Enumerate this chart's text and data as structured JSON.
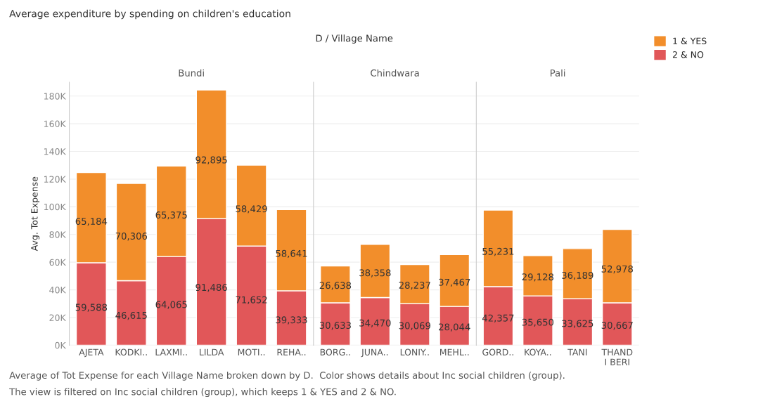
{
  "chart_data": [
    {
      "type": "bar",
      "title": "Bundi",
      "stacked": true,
      "grid": "y",
      "legend": "top right",
      "ylabel": "Avg. Tot Expense",
      "ylim": [
        0,
        190000
      ],
      "yticks": [
        {
          "value": 0,
          "label": "0K"
        },
        {
          "value": 20000,
          "label": "20K"
        },
        {
          "value": 40000,
          "label": "40K"
        },
        {
          "value": 60000,
          "label": "60K"
        },
        {
          "value": 80000,
          "label": "80K"
        },
        {
          "value": 100000,
          "label": "100K"
        },
        {
          "value": 120000,
          "label": "120K"
        },
        {
          "value": 140000,
          "label": "140K"
        },
        {
          "value": 160000,
          "label": "160K"
        },
        {
          "value": 180000,
          "label": "180K"
        }
      ],
      "categories": [
        "AJETA",
        "KODKI..",
        "LAXMI..",
        "LILDA",
        "MOTI..",
        "REHA.."
      ],
      "series": [
        {
          "name": "2 & NO",
          "color": "#e15759",
          "values": [
            59588,
            46615,
            64065,
            91486,
            71652,
            39333
          ],
          "value_labels": [
            "59,588",
            "46,615",
            "64,065",
            "91,486",
            "71,652",
            "39,333"
          ]
        },
        {
          "name": "1 & YES",
          "color": "#f28e2b",
          "values": [
            65184,
            70306,
            65375,
            92895,
            58429,
            58641
          ],
          "value_labels": [
            "65,184",
            "70,306",
            "65,375",
            "92,895",
            "58,429",
            "58,641"
          ]
        }
      ],
      "annotations": [
        "Average expenditure by spending on children's education",
        "D / Village Name",
        "Average of Tot Expense for each Village Name broken down by D.  Color shows details about Inc social children (group).",
        "The view is filtered on Inc social children (group), which keeps 1 & YES and 2 & NO."
      ]
    },
    {
      "type": "bar",
      "title": "Chindwara",
      "stacked": true,
      "grid": "y",
      "tick_labels": "x",
      "ylim": [
        0,
        190000
      ],
      "yticks": [
        0,
        20000,
        40000,
        60000,
        80000,
        100000,
        120000,
        140000,
        160000,
        180000
      ],
      "categories": [
        "BORG..",
        "JUNA..",
        "LONIY..",
        "MEHL.."
      ],
      "series": [
        {
          "color": "#e15759",
          "values": [
            30633,
            34470,
            30069,
            28044
          ],
          "value_labels": [
            "30,633",
            "34,470",
            "30,069",
            "28,044"
          ]
        },
        {
          "color": "#f28e2b",
          "values": [
            26638,
            38358,
            28237,
            37467
          ],
          "value_labels": [
            "26,638",
            "38,358",
            "28,237",
            "37,467"
          ]
        }
      ]
    },
    {
      "type": "bar",
      "title": "Pali",
      "stacked": true,
      "grid": "y",
      "tick_labels": "x",
      "ylim": [
        0,
        190000
      ],
      "yticks": [
        0,
        20000,
        40000,
        60000,
        80000,
        100000,
        120000,
        140000,
        160000,
        180000
      ],
      "categories": [
        "GORD..",
        "KOYA..",
        "TANI",
        "THAND\nI BERI"
      ],
      "series": [
        {
          "color": "#e15759",
          "values": [
            42357,
            35650,
            33625,
            30667
          ],
          "value_labels": [
            "42,357",
            "35,650",
            "33,625",
            "30,667"
          ]
        },
        {
          "color": "#f28e2b",
          "values": [
            55231,
            29128,
            36189,
            52978
          ],
          "value_labels": [
            "55,231",
            "29,128",
            "36,189",
            "52,978"
          ]
        }
      ]
    }
  ]
}
